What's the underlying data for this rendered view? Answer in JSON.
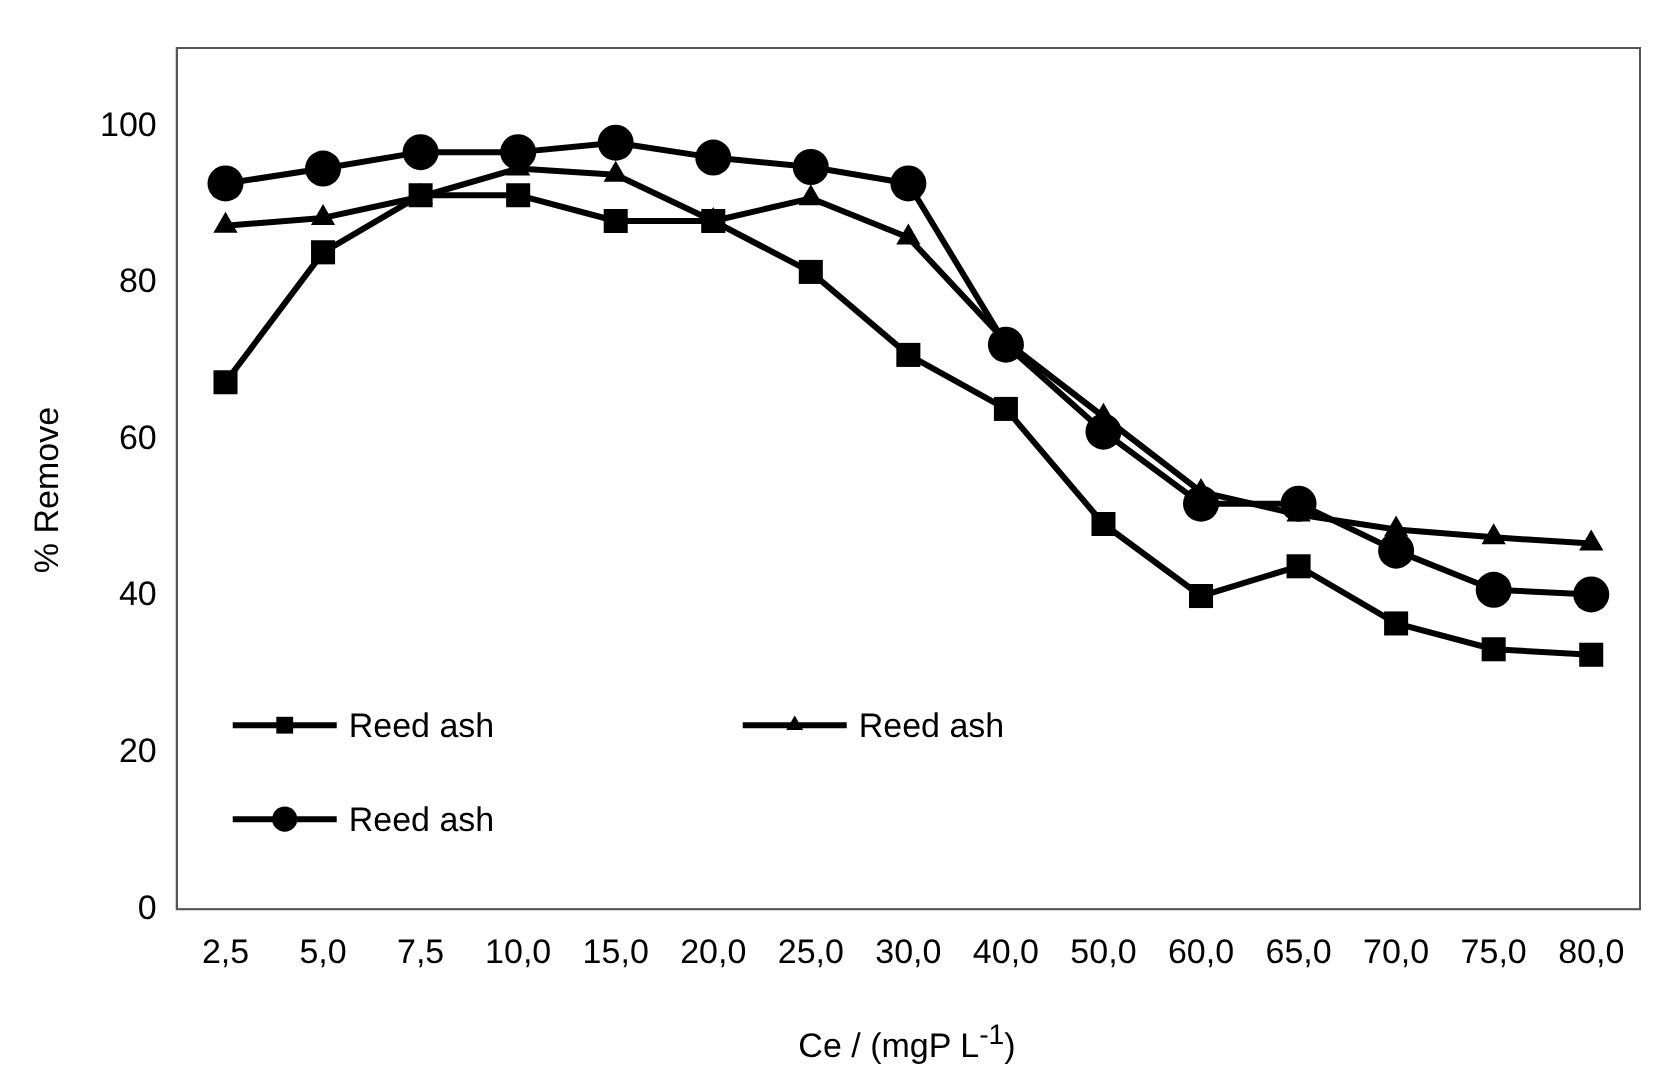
{
  "chart_data": {
    "type": "line",
    "xlabel": "Ce / (mgP  L$^{-1}$)",
    "ylabel": "% Remove",
    "categories": [
      "2,5",
      "5,0",
      "7,5",
      "10,0",
      "15,0",
      "20,0",
      "25,0",
      "30,0",
      "40,0",
      "50,0",
      "60,0",
      "65,0",
      "70,0",
      "75,0",
      "80,0"
    ],
    "ylim": [
      0,
      110
    ],
    "yticks": [
      0,
      20,
      40,
      60,
      80,
      100
    ],
    "grid": false,
    "legend": "bottom left",
    "series": [
      {
        "name": "Reed ash",
        "color": "#000000",
        "marker": "square",
        "values": [
          67.3,
          83.9,
          91.2,
          91.2,
          87.9,
          87.9,
          81.4,
          70.8,
          63.9,
          49.2,
          40,
          43.8,
          36.5,
          33.2,
          32.5
        ]
      },
      {
        "name": "Reed ash",
        "color": "#000000",
        "marker": "triangle",
        "values": [
          87.3,
          88.3,
          91,
          94.6,
          93.8,
          87.9,
          90.8,
          85.8,
          72.5,
          62.9,
          53.3,
          50.4,
          48.5,
          47.5,
          46.7
        ]
      },
      {
        "name": "Reed ash",
        "color": "#000000",
        "marker": "circle",
        "values": [
          92.7,
          94.6,
          96.7,
          96.7,
          97.9,
          96,
          94.8,
          92.7,
          72.1,
          61,
          51.8,
          51.8,
          45.8,
          40.8,
          40.2
        ]
      }
    ]
  }
}
